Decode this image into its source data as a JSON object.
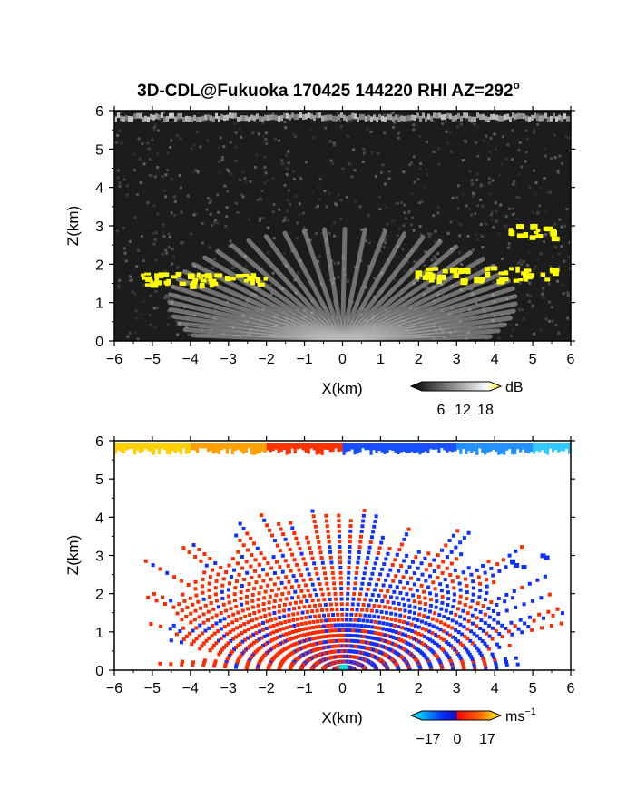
{
  "title": "3D-CDL@Fukuoka 170425 144220 RHI AZ=292",
  "title_superscript": "o",
  "chart_data": [
    {
      "type": "heatmap",
      "panel": "reflectivity",
      "xlabel": "X(km)",
      "ylabel": "Z(km)",
      "xlim": [
        -6,
        6
      ],
      "ylim": [
        0,
        6
      ],
      "xticks": [
        "-6",
        "-5",
        "-4",
        "-3",
        "-2",
        "-1",
        "0",
        "1",
        "2",
        "3",
        "4",
        "5",
        "6"
      ],
      "yticks": [
        "0",
        "1",
        "2",
        "3",
        "4",
        "5",
        "6"
      ],
      "colorbar": {
        "unit": "dB",
        "ticks": [
          "6",
          "12",
          "18"
        ],
        "range": [
          0,
          20
        ]
      },
      "colormap": [
        "#000000",
        "#ffffff",
        "#ffff00"
      ],
      "cloud_layers": [
        {
          "x_range": [
            -5.4,
            -1.9
          ],
          "z_range": [
            1.5,
            1.8
          ]
        },
        {
          "x_range": [
            1.9,
            5.7
          ],
          "z_range": [
            1.6,
            1.95
          ]
        },
        {
          "x_range": [
            4.3,
            5.5
          ],
          "z_range": [
            2.7,
            3.05
          ]
        }
      ]
    },
    {
      "type": "heatmap",
      "panel": "doppler_velocity",
      "xlabel": "X(km)",
      "ylabel": "Z(km)",
      "xlim": [
        -6,
        6
      ],
      "ylim": [
        0,
        6
      ],
      "xticks": [
        "-6",
        "-5",
        "-4",
        "-3",
        "-2",
        "-1",
        "0",
        "1",
        "2",
        "3",
        "4",
        "5",
        "6"
      ],
      "yticks": [
        "0",
        "1",
        "2",
        "3",
        "4",
        "5",
        "6"
      ],
      "colorbar": {
        "unit": "ms",
        "unit_superscript": "−1",
        "ticks": [
          "−17",
          "0",
          "17"
        ],
        "range": [
          -20,
          20
        ]
      },
      "colormap": [
        "#00ffff",
        "#0000ff",
        "#ff0000",
        "#ffff00"
      ]
    }
  ],
  "colors": {
    "background": "#ffffff",
    "frame": "#000000",
    "echo_yellow": "#ffff00",
    "velocity_red": "#ff2200",
    "velocity_blue": "#1030ff"
  }
}
